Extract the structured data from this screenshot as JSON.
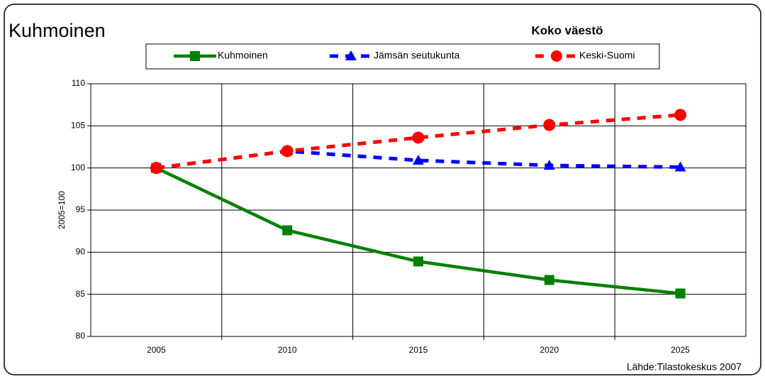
{
  "chart_data": {
    "type": "line",
    "title": "Kuhmoinen",
    "subtitle": "Koko väestö",
    "y_label": "2005=100",
    "source": "Lähde:Tilastokeskus 2007",
    "categories": [
      "2005",
      "2010",
      "2015",
      "2020",
      "2025"
    ],
    "series": [
      {
        "name": "Kuhmoinen",
        "color": "#008000",
        "marker": "square",
        "dash": false,
        "values": [
          100,
          92.6,
          88.9,
          86.7,
          85.1
        ]
      },
      {
        "name": "Jämsän seutukunta",
        "color": "#0000ff",
        "marker": "triangle",
        "dash": true,
        "values": [
          100,
          102,
          100.9,
          100.3,
          100.1
        ]
      },
      {
        "name": "Keski-Suomi",
        "color": "#ff0000",
        "marker": "circle",
        "dash": true,
        "values": [
          100,
          102,
          103.6,
          105.1,
          106.3
        ]
      }
    ],
    "ylim": [
      80,
      110
    ],
    "yticks": [
      80,
      85,
      90,
      95,
      100,
      105,
      110
    ],
    "grid": true
  }
}
